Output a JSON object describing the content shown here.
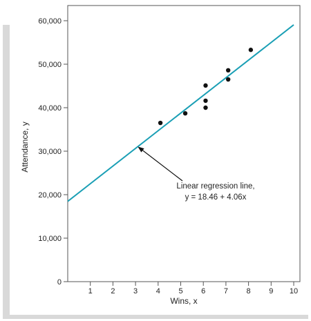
{
  "chart_data": {
    "type": "scatter",
    "xlabel": "Wins, x",
    "ylabel": "Attendance, y",
    "xlim": [
      0,
      10
    ],
    "ylim": [
      0,
      60000
    ],
    "x_ticks": [
      1,
      2,
      3,
      4,
      5,
      6,
      7,
      8,
      9,
      10
    ],
    "x_tick_labels": [
      "1",
      "2",
      "3",
      "4",
      "5",
      "6",
      "7",
      "8",
      "9",
      "10"
    ],
    "y_ticks": [
      0,
      10000,
      20000,
      30000,
      40000,
      50000,
      60000
    ],
    "y_tick_labels": [
      "0",
      "10,000",
      "20,000",
      "30,000",
      "40,000",
      "50,000",
      "60,000"
    ],
    "points": [
      {
        "x": 4.1,
        "y": 36500
      },
      {
        "x": 5.2,
        "y": 38700
      },
      {
        "x": 6.1,
        "y": 40000
      },
      {
        "x": 6.1,
        "y": 41600
      },
      {
        "x": 6.1,
        "y": 45100
      },
      {
        "x": 7.1,
        "y": 46500
      },
      {
        "x": 7.1,
        "y": 48600
      },
      {
        "x": 8.1,
        "y": 53300
      }
    ],
    "regression": {
      "intercept": 18460,
      "slope": 4060
    },
    "annotation": {
      "line1": "Linear regression line,",
      "line2": "y = 18.46 + 4.06x",
      "target_x": 3.1
    },
    "colors": {
      "line": "#1a9fb5",
      "points": "#111111",
      "frame": "#555555",
      "shadow": "#d9d9d9"
    }
  }
}
